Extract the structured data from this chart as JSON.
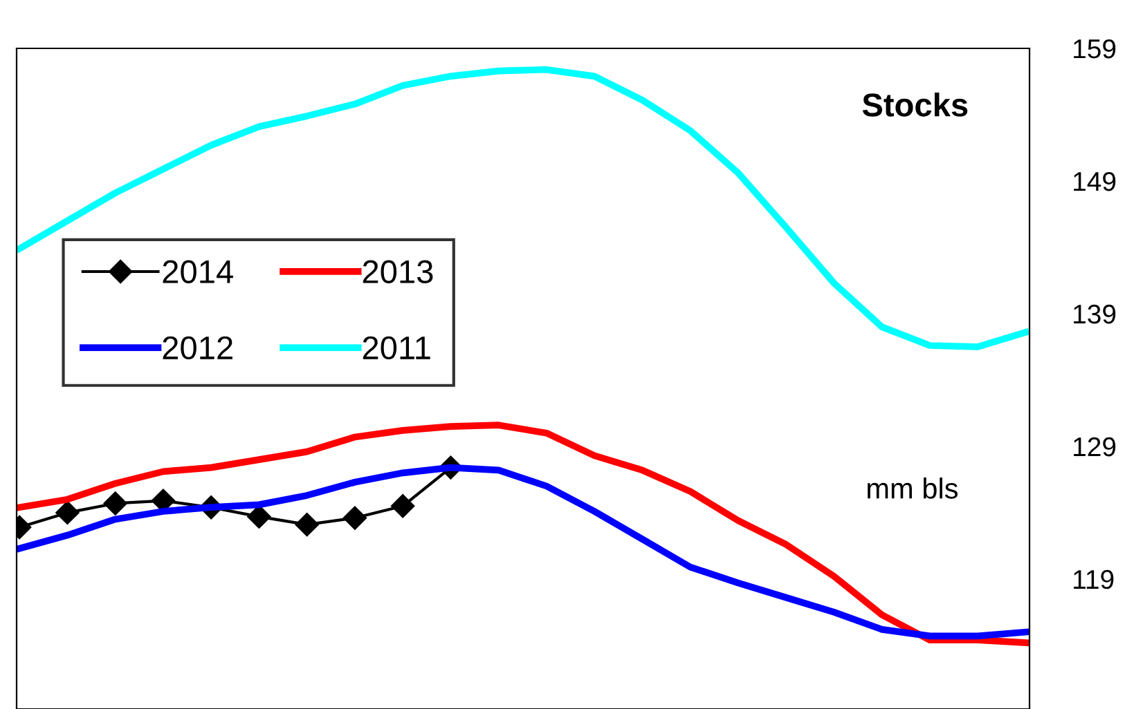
{
  "chart_data": {
    "type": "line",
    "title": "Stocks",
    "annotations": [
      "mm bls"
    ],
    "categories": [
      null,
      null,
      null,
      null,
      null,
      null,
      null,
      null,
      null,
      null,
      null,
      null,
      null,
      null,
      null,
      null,
      null,
      null,
      null,
      null,
      null,
      null
    ],
    "series": [
      {
        "name": "2014",
        "color": "#000000",
        "marker": "diamond",
        "values": [
          122.9,
          124.0,
          124.7,
          124.9,
          124.4,
          123.7,
          123.1,
          123.6,
          124.5,
          127.4,
          null,
          null,
          null,
          null,
          null,
          null,
          null,
          null,
          null,
          null,
          null,
          null
        ]
      },
      {
        "name": "2013",
        "color": "#ff0000",
        "values": [
          124.4,
          125.0,
          126.2,
          127.1,
          127.4,
          128.0,
          128.6,
          129.7,
          130.2,
          130.5,
          130.6,
          130.0,
          128.3,
          127.2,
          125.6,
          123.4,
          121.6,
          119.2,
          116.3,
          114.4,
          114.4,
          114.2
        ]
      },
      {
        "name": "2012",
        "color": "#0000ff",
        "values": [
          121.3,
          122.3,
          123.5,
          124.1,
          124.4,
          124.6,
          125.3,
          126.3,
          127.0,
          127.4,
          127.2,
          126.0,
          124.1,
          122.0,
          119.9,
          118.7,
          117.6,
          116.5,
          115.2,
          114.7,
          114.7,
          115.0
        ]
      },
      {
        "name": "2011",
        "color": "#00ffff",
        "values": [
          143.9,
          146.0,
          148.1,
          149.9,
          151.7,
          153.1,
          153.9,
          154.8,
          156.2,
          156.9,
          157.3,
          157.4,
          156.9,
          155.1,
          152.8,
          149.6,
          145.5,
          141.3,
          138.0,
          136.6,
          136.5,
          137.6
        ]
      }
    ],
    "ylim": [
      109.2,
      159
    ],
    "yticks": [
      119,
      129,
      139,
      149,
      159
    ],
    "grid": false,
    "legend": "top left",
    "tick_labels": "y"
  }
}
